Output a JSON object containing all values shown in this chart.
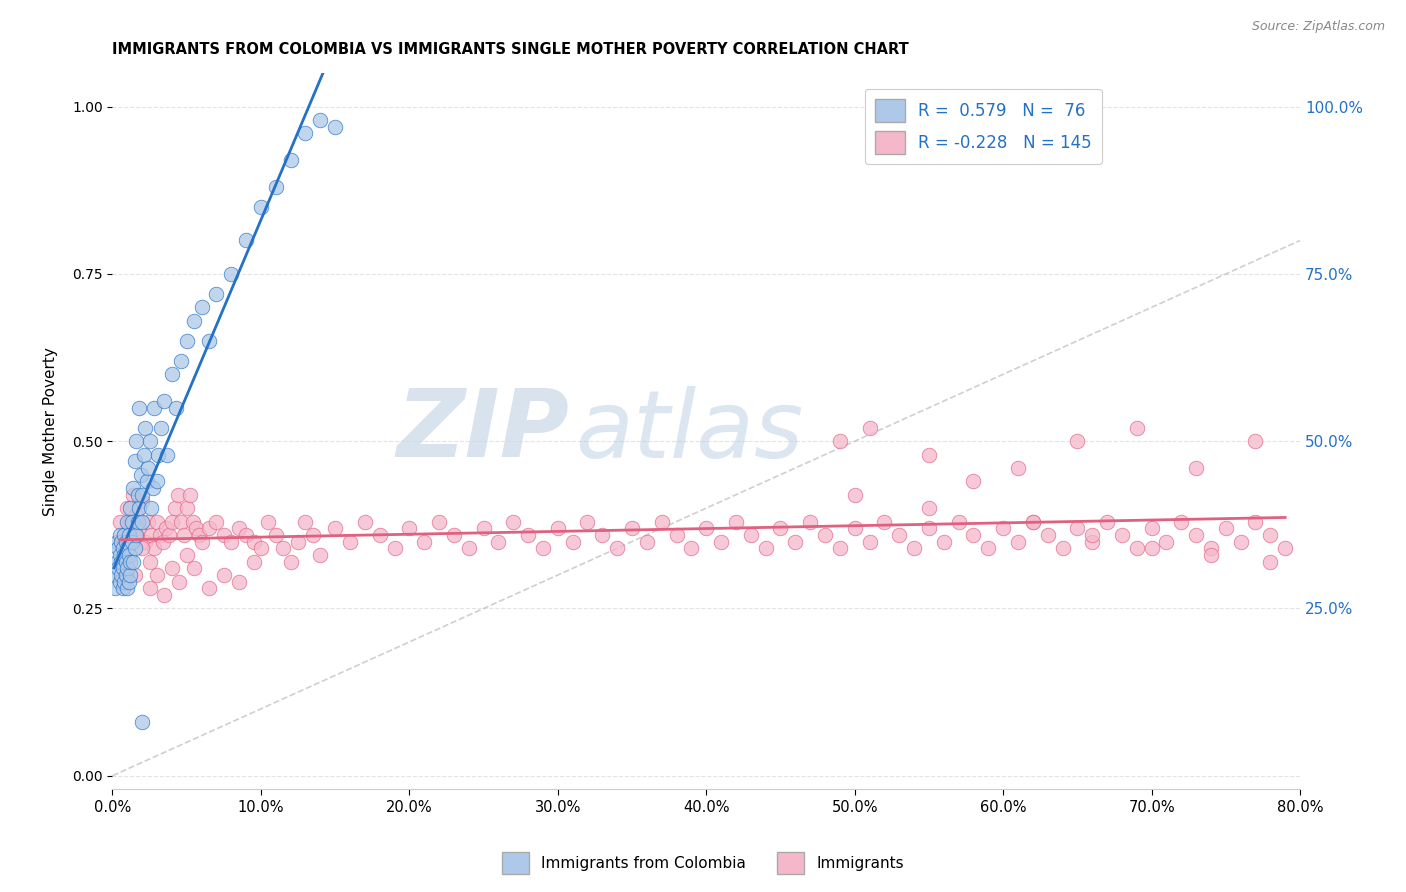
{
  "title": "IMMIGRANTS FROM COLOMBIA VS IMMIGRANTS SINGLE MOTHER POVERTY CORRELATION CHART",
  "source": "Source: ZipAtlas.com",
  "ylabel": "Single Mother Poverty",
  "right_yticks": [
    0.0,
    0.25,
    0.5,
    0.75,
    1.0
  ],
  "right_yticklabels": [
    "",
    "25.0%",
    "50.0%",
    "75.0%",
    "100.0%"
  ],
  "blue_color": "#adc8e8",
  "pink_color": "#f5b8cb",
  "blue_line_color": "#2471c8",
  "pink_line_color": "#e06080",
  "blue_scatter_x": [
    0.001,
    0.002,
    0.003,
    0.003,
    0.004,
    0.004,
    0.005,
    0.005,
    0.005,
    0.006,
    0.006,
    0.006,
    0.007,
    0.007,
    0.007,
    0.008,
    0.008,
    0.008,
    0.009,
    0.009,
    0.009,
    0.01,
    0.01,
    0.01,
    0.01,
    0.011,
    0.011,
    0.011,
    0.012,
    0.012,
    0.012,
    0.013,
    0.013,
    0.014,
    0.014,
    0.015,
    0.015,
    0.016,
    0.016,
    0.017,
    0.017,
    0.018,
    0.018,
    0.019,
    0.02,
    0.02,
    0.021,
    0.022,
    0.023,
    0.024,
    0.025,
    0.026,
    0.027,
    0.028,
    0.03,
    0.031,
    0.033,
    0.035,
    0.037,
    0.04,
    0.043,
    0.046,
    0.05,
    0.055,
    0.06,
    0.065,
    0.07,
    0.08,
    0.09,
    0.1,
    0.11,
    0.12,
    0.13,
    0.14,
    0.15,
    0.02
  ],
  "blue_scatter_y": [
    0.3,
    0.28,
    0.32,
    0.35,
    0.31,
    0.34,
    0.29,
    0.33,
    0.36,
    0.3,
    0.32,
    0.35,
    0.28,
    0.31,
    0.34,
    0.29,
    0.33,
    0.36,
    0.3,
    0.32,
    0.35,
    0.28,
    0.31,
    0.34,
    0.38,
    0.29,
    0.33,
    0.36,
    0.3,
    0.32,
    0.4,
    0.35,
    0.38,
    0.32,
    0.43,
    0.34,
    0.47,
    0.36,
    0.5,
    0.38,
    0.42,
    0.4,
    0.55,
    0.45,
    0.38,
    0.42,
    0.48,
    0.52,
    0.44,
    0.46,
    0.5,
    0.4,
    0.43,
    0.55,
    0.44,
    0.48,
    0.52,
    0.56,
    0.48,
    0.6,
    0.55,
    0.62,
    0.65,
    0.68,
    0.7,
    0.65,
    0.72,
    0.75,
    0.8,
    0.85,
    0.88,
    0.92,
    0.96,
    0.98,
    0.97,
    0.08
  ],
  "pink_scatter_x": [
    0.005,
    0.008,
    0.01,
    0.012,
    0.014,
    0.016,
    0.018,
    0.02,
    0.022,
    0.024,
    0.026,
    0.028,
    0.03,
    0.032,
    0.034,
    0.036,
    0.038,
    0.04,
    0.042,
    0.044,
    0.046,
    0.048,
    0.05,
    0.052,
    0.054,
    0.056,
    0.058,
    0.06,
    0.065,
    0.07,
    0.075,
    0.08,
    0.085,
    0.09,
    0.095,
    0.1,
    0.105,
    0.11,
    0.115,
    0.12,
    0.125,
    0.13,
    0.135,
    0.14,
    0.15,
    0.16,
    0.17,
    0.18,
    0.19,
    0.2,
    0.21,
    0.22,
    0.23,
    0.24,
    0.25,
    0.26,
    0.27,
    0.28,
    0.29,
    0.3,
    0.31,
    0.32,
    0.33,
    0.34,
    0.35,
    0.36,
    0.37,
    0.38,
    0.39,
    0.4,
    0.41,
    0.42,
    0.43,
    0.44,
    0.45,
    0.46,
    0.47,
    0.48,
    0.49,
    0.5,
    0.51,
    0.52,
    0.53,
    0.54,
    0.55,
    0.56,
    0.57,
    0.58,
    0.59,
    0.6,
    0.61,
    0.62,
    0.63,
    0.64,
    0.65,
    0.66,
    0.67,
    0.68,
    0.69,
    0.7,
    0.71,
    0.72,
    0.73,
    0.74,
    0.75,
    0.76,
    0.77,
    0.78,
    0.79,
    0.015,
    0.025,
    0.035,
    0.045,
    0.055,
    0.065,
    0.075,
    0.085,
    0.095,
    0.49,
    0.51,
    0.55,
    0.61,
    0.65,
    0.69,
    0.73,
    0.77,
    0.015,
    0.02,
    0.025,
    0.03,
    0.04,
    0.05,
    0.5,
    0.55,
    0.58,
    0.62,
    0.66,
    0.7,
    0.74,
    0.78
  ],
  "pink_scatter_y": [
    0.38,
    0.36,
    0.4,
    0.38,
    0.42,
    0.39,
    0.37,
    0.41,
    0.35,
    0.38,
    0.36,
    0.34,
    0.38,
    0.36,
    0.35,
    0.37,
    0.36,
    0.38,
    0.4,
    0.42,
    0.38,
    0.36,
    0.4,
    0.42,
    0.38,
    0.37,
    0.36,
    0.35,
    0.37,
    0.38,
    0.36,
    0.35,
    0.37,
    0.36,
    0.35,
    0.34,
    0.38,
    0.36,
    0.34,
    0.32,
    0.35,
    0.38,
    0.36,
    0.33,
    0.37,
    0.35,
    0.38,
    0.36,
    0.34,
    0.37,
    0.35,
    0.38,
    0.36,
    0.34,
    0.37,
    0.35,
    0.38,
    0.36,
    0.34,
    0.37,
    0.35,
    0.38,
    0.36,
    0.34,
    0.37,
    0.35,
    0.38,
    0.36,
    0.34,
    0.37,
    0.35,
    0.38,
    0.36,
    0.34,
    0.37,
    0.35,
    0.38,
    0.36,
    0.34,
    0.37,
    0.35,
    0.38,
    0.36,
    0.34,
    0.37,
    0.35,
    0.38,
    0.36,
    0.34,
    0.37,
    0.35,
    0.38,
    0.36,
    0.34,
    0.37,
    0.35,
    0.38,
    0.36,
    0.34,
    0.37,
    0.35,
    0.38,
    0.36,
    0.34,
    0.37,
    0.35,
    0.38,
    0.36,
    0.34,
    0.3,
    0.28,
    0.27,
    0.29,
    0.31,
    0.28,
    0.3,
    0.29,
    0.32,
    0.5,
    0.52,
    0.48,
    0.46,
    0.5,
    0.52,
    0.46,
    0.5,
    0.36,
    0.34,
    0.32,
    0.3,
    0.31,
    0.33,
    0.42,
    0.4,
    0.44,
    0.38,
    0.36,
    0.34,
    0.33,
    0.32
  ],
  "watermark_zip": "ZIP",
  "watermark_atlas": "atlas",
  "xlim": [
    0.0,
    0.8
  ],
  "ylim": [
    -0.02,
    1.05
  ],
  "xtick_vals": [
    0.0,
    0.1,
    0.2,
    0.3,
    0.4,
    0.5,
    0.6,
    0.7,
    0.8
  ],
  "grid_color": "#e0e0e0",
  "diag_color": "#b0b0b0"
}
